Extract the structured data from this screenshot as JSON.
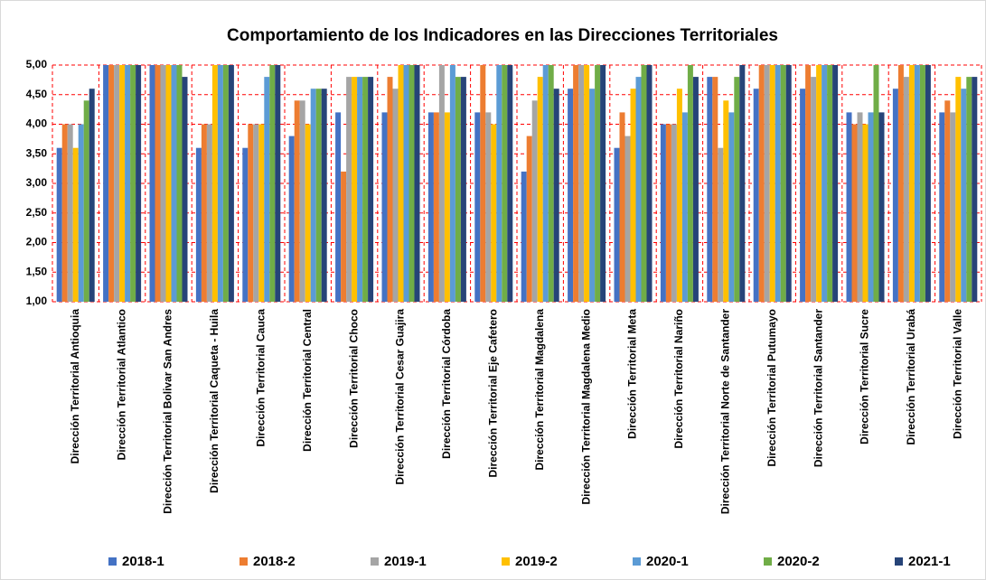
{
  "chart_data": {
    "type": "bar",
    "title": "Comportamiento de los Indicadores en las Direcciones Territoriales",
    "categories": [
      "Dirección Territorial Antioquia",
      "Dirección Territorial Atlantico",
      "Dirección Territorial Bolivar San Andres",
      "Dirección Territorial Caqueta - Huila",
      "Dirección Territorial Cauca",
      "Dirección Territorial Central",
      "Dirección Territorial Choco",
      "Dirección Territorial Cesar Guajira",
      "Dirección Territorial Córdoba",
      "Dirección Territorial Eje Cafetero",
      "Dirección Territorial Magdalena",
      "Dirección Territorial Magdalena Medio",
      "Dirección Territorial Meta",
      "Dirección Territorial Nariño",
      "Dirección Territorial Norte de Santander",
      "Dirección Territorial Putumayo",
      "Dirección Territorial Santander",
      "Dirección Territorial Sucre",
      "Dirección Territorial Urabá",
      "Dirección Territorial Valle"
    ],
    "series": [
      {
        "name": "2018-1",
        "color": "#4472c4",
        "values": [
          3.6,
          5,
          5,
          3.6,
          3.6,
          3.8,
          4.2,
          4.2,
          4.2,
          4.2,
          3.2,
          4.6,
          3.6,
          4.0,
          4.8,
          4.6,
          4.6,
          4.2,
          4.6,
          4.2
        ]
      },
      {
        "name": "2018-2",
        "color": "#ed7d31",
        "values": [
          4.0,
          5,
          5,
          4.0,
          4.0,
          4.4,
          3.2,
          4.8,
          4.2,
          5,
          3.8,
          5,
          4.2,
          4.0,
          4.8,
          5,
          5,
          4.0,
          5,
          4.4
        ]
      },
      {
        "name": "2019-1",
        "color": "#a5a5a5",
        "values": [
          4.0,
          5,
          5,
          4.0,
          4.0,
          4.4,
          4.8,
          4.6,
          5,
          4.2,
          4.4,
          5,
          3.8,
          4.0,
          3.6,
          5,
          4.8,
          4.2,
          4.8,
          4.2
        ]
      },
      {
        "name": "2019-2",
        "color": "#ffc000",
        "values": [
          3.6,
          5,
          5,
          5,
          4.0,
          4.0,
          4.8,
          5,
          4.2,
          4.0,
          4.8,
          5,
          4.6,
          4.6,
          4.4,
          5,
          5,
          4.0,
          5,
          4.8
        ]
      },
      {
        "name": "2020-1",
        "color": "#5b9bd5",
        "values": [
          4.0,
          5,
          5,
          5,
          4.8,
          4.6,
          4.8,
          5,
          5,
          5,
          5,
          4.6,
          4.8,
          4.2,
          4.2,
          5,
          5,
          4.2,
          5,
          4.6
        ]
      },
      {
        "name": "2020-2",
        "color": "#70ad47",
        "values": [
          4.4,
          5,
          5,
          5,
          5,
          4.6,
          4.8,
          5,
          4.8,
          5,
          5,
          5,
          5,
          5,
          4.8,
          5,
          5,
          5,
          5,
          4.8
        ]
      },
      {
        "name": "2021-1",
        "color": "#264478",
        "values": [
          4.6,
          5,
          4.8,
          5,
          5,
          4.6,
          4.8,
          5,
          4.8,
          5,
          4.6,
          5,
          5,
          4.8,
          5,
          5,
          5,
          4.2,
          5,
          4.8
        ]
      }
    ],
    "ylim": [
      1,
      5
    ],
    "yticks": [
      {
        "value": 1,
        "label": "1,00"
      },
      {
        "value": 1.5,
        "label": "1,50"
      },
      {
        "value": 2,
        "label": "2,00"
      },
      {
        "value": 2.5,
        "label": "2,50"
      },
      {
        "value": 3,
        "label": "3,00"
      },
      {
        "value": 3.5,
        "label": "3,50"
      },
      {
        "value": 4,
        "label": "4,00"
      },
      {
        "value": 4.5,
        "label": "4,50"
      },
      {
        "value": 5,
        "label": "5,00"
      }
    ],
    "grid": true,
    "grid_color": "#ff0000",
    "legend": "bottom"
  }
}
